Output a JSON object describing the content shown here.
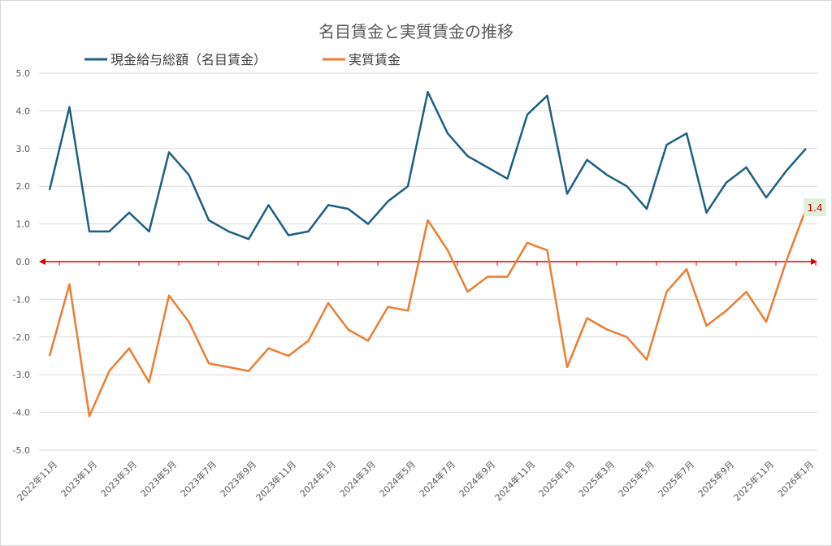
{
  "chart_data": {
    "type": "line",
    "title": "名目賃金と実質賃金の推移",
    "xlabel": "",
    "ylabel": "",
    "ylim": [
      -5.0,
      5.0
    ],
    "yticks": [
      5.0,
      4.0,
      3.0,
      2.0,
      1.0,
      0.0,
      -1.0,
      -2.0,
      -3.0,
      -4.0,
      -5.0
    ],
    "ytick_labels": [
      "5.0",
      "4.0",
      "3.0",
      "2.0",
      "1.0",
      "0.0",
      "-1.0",
      "-2.0",
      "-3.0",
      "-4.0",
      "-5.0"
    ],
    "grid": true,
    "legend_position": "top",
    "x": [
      "2022年11月",
      "2022年12月",
      "2023年1月",
      "2023年2月",
      "2023年3月",
      "2023年4月",
      "2023年5月",
      "2023年6月",
      "2023年7月",
      "2023年8月",
      "2023年9月",
      "2023年10月",
      "2023年11月",
      "2023年12月",
      "2024年1月",
      "2024年2月",
      "2024年3月",
      "2024年4月",
      "2024年5月",
      "2024年6月",
      "2024年7月",
      "2024年8月",
      "2024年9月",
      "2024年10月",
      "2024年11月",
      "2024年12月",
      "2025年1月",
      "2025年2月",
      "2025年3月",
      "2025年4月",
      "2025年5月",
      "2025年6月",
      "2025年7月",
      "2025年8月",
      "2025年9月",
      "2025年10月",
      "2025年11月",
      "2025年12月",
      "2026年1月"
    ],
    "x_tick_labels": [
      "2022年11月",
      "2023年1月",
      "2023年3月",
      "2023年5月",
      "2023年7月",
      "2023年9月",
      "2023年11月",
      "2024年1月",
      "2024年3月",
      "2024年5月",
      "2024年7月",
      "2024年9月",
      "2024年11月",
      "2025年1月",
      "2025年3月",
      "2025年5月",
      "2025年7月",
      "2025年9月",
      "2025年11月",
      "2026年1月"
    ],
    "series": [
      {
        "name": "現金給与総額（名目賃金）",
        "color": "#1f5f7f",
        "values": [
          1.9,
          4.1,
          0.8,
          0.8,
          1.3,
          0.8,
          2.9,
          2.3,
          1.1,
          0.8,
          0.6,
          1.5,
          0.7,
          0.8,
          1.5,
          1.4,
          1.0,
          1.6,
          2.0,
          4.5,
          3.4,
          2.8,
          2.5,
          2.2,
          3.9,
          4.4,
          1.8,
          2.7,
          2.3,
          2.0,
          1.4,
          3.1,
          3.4,
          1.3,
          2.1,
          2.5,
          1.7,
          2.4,
          3.0
        ]
      },
      {
        "name": "実質賃金",
        "color": "#ed7d31",
        "values": [
          -2.5,
          -0.6,
          -4.1,
          -2.9,
          -2.3,
          -3.2,
          -0.9,
          -1.6,
          -2.7,
          -2.8,
          -2.9,
          -2.3,
          -2.5,
          -2.1,
          -1.1,
          -1.8,
          -2.1,
          -1.2,
          -1.3,
          1.1,
          0.3,
          -0.8,
          -0.4,
          -0.4,
          0.5,
          0.3,
          -2.8,
          -1.5,
          -1.8,
          -2.0,
          -2.6,
          -0.8,
          -0.2,
          -1.7,
          -1.3,
          -0.8,
          -1.6,
          0.0,
          1.4
        ]
      }
    ],
    "annotation": {
      "text": "1.4",
      "series": "実質賃金",
      "index": 38,
      "bg_color": "#e2efda",
      "text_color": "#c00000"
    },
    "zero_line_color": "#e00000"
  }
}
